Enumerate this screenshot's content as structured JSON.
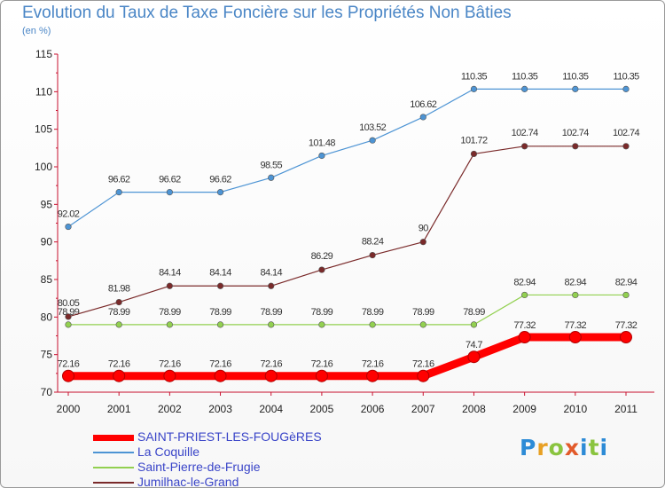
{
  "chart_data": {
    "type": "line",
    "title": "Evolution du Taux de Taxe Foncière sur les Propriétés Non Bâties",
    "unit_label": "(en %)",
    "categories": [
      "2000",
      "2001",
      "2002",
      "2003",
      "2004",
      "2005",
      "2006",
      "2007",
      "2008",
      "2009",
      "2010",
      "2011"
    ],
    "ylim": [
      70,
      115
    ],
    "yticks": [
      70,
      75,
      80,
      85,
      90,
      95,
      100,
      105,
      110,
      115
    ],
    "grid": false,
    "legend_position": "bottom-left",
    "series": [
      {
        "name": "SAINT-PRIEST-LES-FOUGèRES",
        "color": "#ff0000",
        "values": [
          72.16,
          72.16,
          72.16,
          72.16,
          72.16,
          72.16,
          72.16,
          72.16,
          74.7,
          77.32,
          77.32,
          77.32
        ],
        "labels": [
          "72.16",
          "72.16",
          "72.16",
          "72.16",
          "72.16",
          "72.16",
          "72.16",
          "72.16",
          "74.7",
          "77.32",
          "77.32",
          "77.32"
        ]
      },
      {
        "name": "La Coquille",
        "color": "#4d94d4",
        "values": [
          92.02,
          96.62,
          96.62,
          96.62,
          98.55,
          101.48,
          103.52,
          106.62,
          110.35,
          110.35,
          110.35,
          110.35
        ],
        "labels": [
          "92.02",
          "96.62",
          "96.62",
          "96.62",
          "98.55",
          "101.48",
          "103.52",
          "106.62",
          "110.35",
          "110.35",
          "110.35",
          "110.35"
        ]
      },
      {
        "name": "Saint-Pierre-de-Frugie",
        "color": "#92d050",
        "values": [
          78.99,
          78.99,
          78.99,
          78.99,
          78.99,
          78.99,
          78.99,
          78.99,
          78.99,
          82.94,
          82.94,
          82.94
        ],
        "labels": [
          "78.99",
          "78.99",
          "78.99",
          "78.99",
          "78.99",
          "78.99",
          "78.99",
          "78.99",
          "78.99",
          "82.94",
          "82.94",
          "82.94"
        ]
      },
      {
        "name": "Jumilhac-le-Grand",
        "color": "#7a2a2a",
        "values": [
          80.05,
          81.98,
          84.14,
          84.14,
          84.14,
          86.29,
          88.24,
          90,
          101.72,
          102.74,
          102.74,
          102.74
        ],
        "labels": [
          "80.05",
          "81.98",
          "84.14",
          "84.14",
          "84.14",
          "86.29",
          "88.24",
          "90",
          "101.72",
          "102.74",
          "102.74",
          "102.74"
        ]
      }
    ]
  },
  "logo": {
    "text": "Proxiti"
  }
}
